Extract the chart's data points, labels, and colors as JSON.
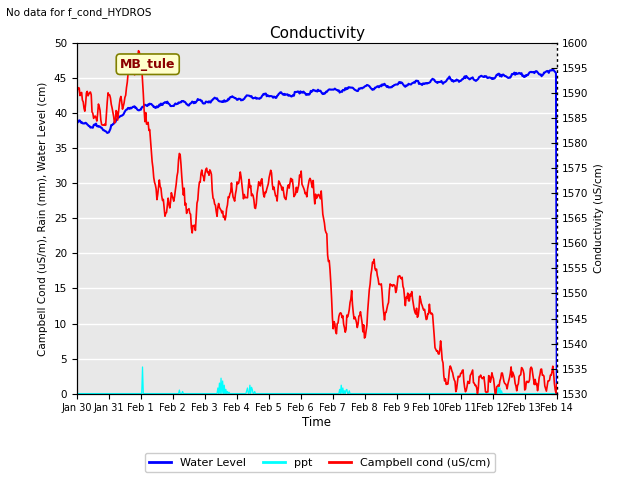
{
  "title": "Conductivity",
  "top_left_text": "No data for f_cond_HYDROS",
  "ylabel_left": "Campbell Cond (uS/m), Rain (mm), Water Level (cm)",
  "ylabel_right": "Conductivity (uS/cm)",
  "xlabel": "Time",
  "ylim_left": [
    0,
    50
  ],
  "ylim_right": [
    1530,
    1600
  ],
  "x_tick_labels": [
    "Jan 30",
    "Jan 31",
    "Feb 1",
    "Feb 2",
    "Feb 3",
    "Feb 4",
    "Feb 5",
    "Feb 6",
    "Feb 7",
    "Feb 8",
    "Feb 9",
    "Feb 10",
    "Feb 11",
    "Feb 12",
    "Feb 13",
    "Feb 14"
  ],
  "legend_labels": [
    "Water Level",
    "ppt",
    "Campbell cond (uS/cm)"
  ],
  "legend_colors": [
    "blue",
    "cyan",
    "red"
  ],
  "annotation_box": "MB_tule",
  "background_color": "#ffffff",
  "plot_bg_color": "#e8e8e8",
  "grid_color": "white",
  "wl_color": "#0000ff",
  "ppt_color": "#00ffff",
  "cc_color": "#ff0000"
}
